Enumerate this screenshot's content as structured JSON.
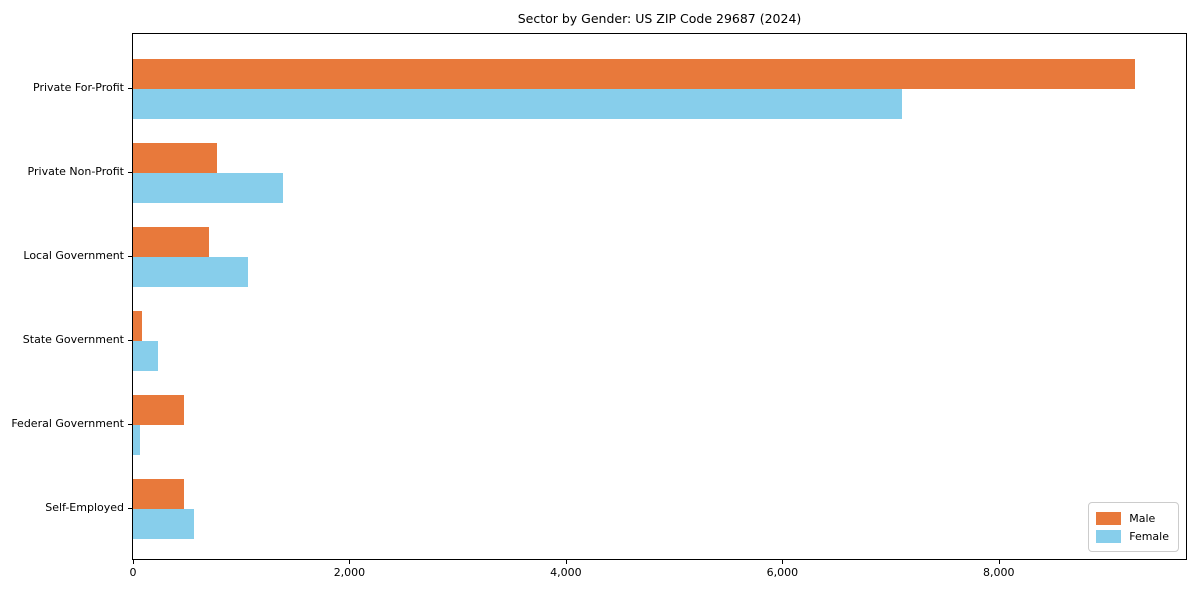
{
  "chart_data": {
    "type": "bar",
    "orientation": "horizontal",
    "title": "Sector by Gender: US ZIP Code 29687 (2024)",
    "categories": [
      "Private For-Profit",
      "Private Non-Profit",
      "Local Government",
      "State Government",
      "Federal Government",
      "Self-Employed"
    ],
    "series": [
      {
        "name": "Male",
        "color": "#E8793B",
        "values": [
          9260,
          780,
          705,
          85,
          470,
          475
        ]
      },
      {
        "name": "Female",
        "color": "#87CEEB",
        "values": [
          7110,
          1385,
          1065,
          235,
          65,
          565
        ]
      }
    ],
    "xlim": [
      0,
      9730
    ],
    "xticks": [
      0,
      2000,
      4000,
      6000,
      8000
    ],
    "xtick_labels": [
      "0",
      "2,000",
      "4,000",
      "6,000",
      "8,000"
    ],
    "grid": false,
    "legend": {
      "position": "lower-right",
      "entries": [
        "Male",
        "Female"
      ]
    },
    "colors": {
      "axis": "#000000",
      "background": "#ffffff",
      "legend_border": "#cccccc"
    }
  }
}
